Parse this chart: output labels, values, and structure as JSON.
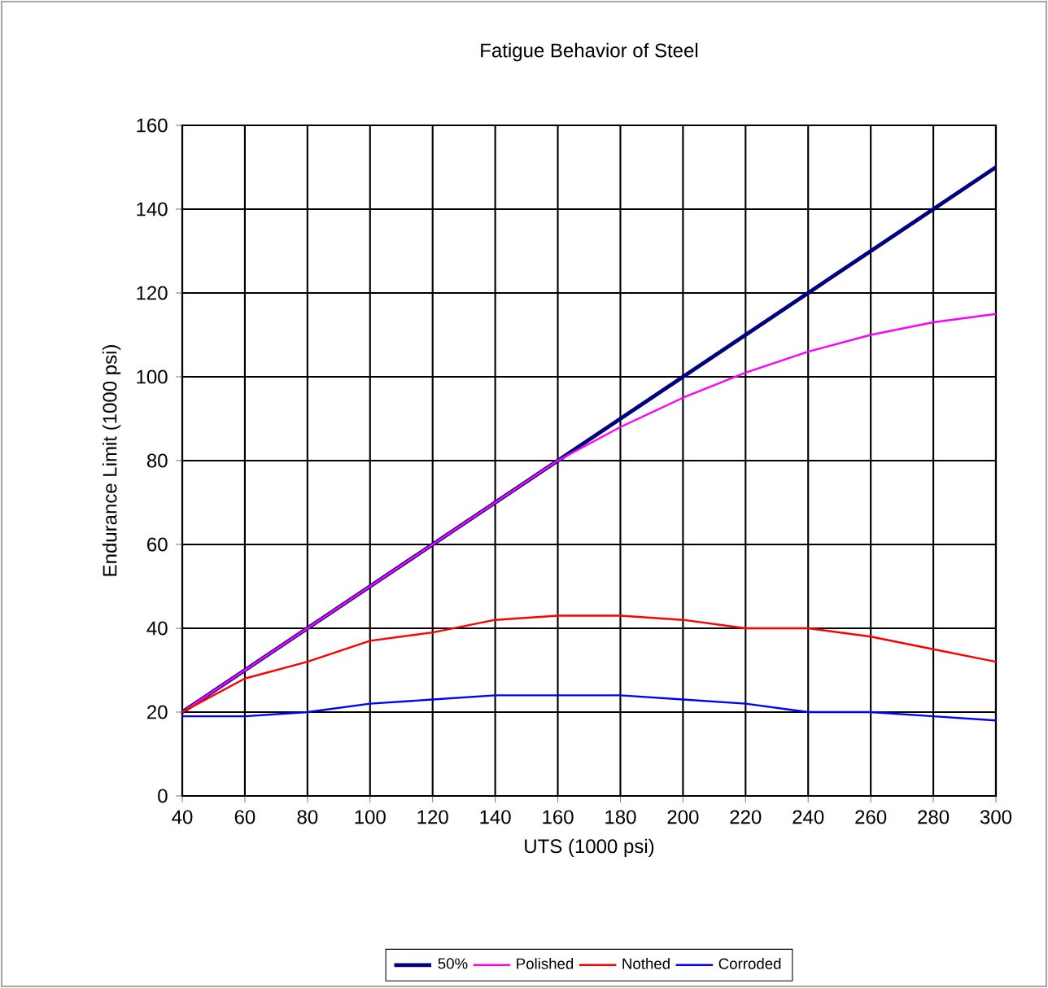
{
  "chart_data": {
    "type": "line",
    "title": "Fatigue Behavior of Steel",
    "xlabel": "UTS (1000 psi)",
    "ylabel": "Endurance Limit (1000 psi)",
    "x": [
      40,
      60,
      80,
      100,
      120,
      140,
      160,
      180,
      200,
      220,
      240,
      260,
      280,
      300
    ],
    "series": [
      {
        "name": "50%",
        "color": "#000080",
        "values": [
          20,
          30,
          40,
          50,
          60,
          70,
          80,
          90,
          100,
          110,
          120,
          130,
          140,
          150
        ]
      },
      {
        "name": "Polished",
        "color": "#ff00ff",
        "values": [
          20,
          30,
          40,
          50,
          60,
          70,
          80,
          88,
          95,
          101,
          106,
          110,
          113,
          115
        ]
      },
      {
        "name": "Nothed",
        "color": "#ff0000",
        "values": [
          20,
          28,
          32,
          37,
          39,
          42,
          43,
          43,
          42,
          40,
          40,
          38,
          35,
          32
        ]
      },
      {
        "name": "Corroded",
        "color": "#0000ff",
        "values": [
          19,
          19,
          20,
          22,
          23,
          24,
          24,
          24,
          23,
          22,
          20,
          20,
          19,
          18
        ]
      }
    ],
    "xlim": [
      40,
      300
    ],
    "xticks": [
      40,
      60,
      80,
      100,
      120,
      140,
      160,
      180,
      200,
      220,
      240,
      260,
      280,
      300
    ],
    "ylim": [
      0,
      160
    ],
    "yticks": [
      0,
      20,
      40,
      60,
      80,
      100,
      120,
      140,
      160
    ],
    "grid": true,
    "legend": "bottom",
    "marker": "none",
    "line_style": "solid"
  }
}
